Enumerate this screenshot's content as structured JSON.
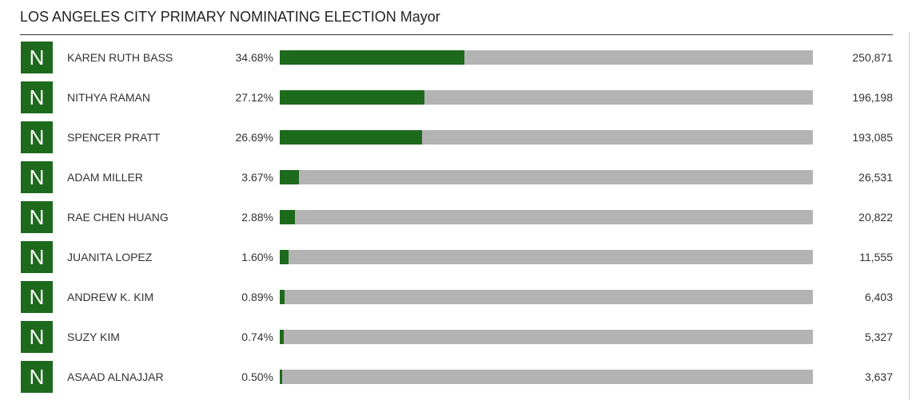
{
  "header": {
    "title": "LOS ANGELES CITY PRIMARY NOMINATING ELECTION Mayor"
  },
  "candidates": [
    {
      "badge": "N",
      "name": "KAREN RUTH BASS",
      "percent": {
        "value": 34.68,
        "label": "34.68%"
      },
      "votes": "250,871"
    },
    {
      "badge": "N",
      "name": "NITHYA RAMAN",
      "percent": {
        "value": 27.12,
        "label": "27.12%"
      },
      "votes": "196,198"
    },
    {
      "badge": "N",
      "name": "SPENCER PRATT",
      "percent": {
        "value": 26.69,
        "label": "26.69%"
      },
      "votes": "193,085"
    },
    {
      "badge": "N",
      "name": "ADAM MILLER",
      "percent": {
        "value": 3.67,
        "label": "3.67%"
      },
      "votes": "26,531"
    },
    {
      "badge": "N",
      "name": "RAE CHEN HUANG",
      "percent": {
        "value": 2.88,
        "label": "2.88%"
      },
      "votes": "20,822"
    },
    {
      "badge": "N",
      "name": "JUANITA LOPEZ",
      "percent": {
        "value": 1.6,
        "label": "1.60%"
      },
      "votes": "11,555"
    },
    {
      "badge": "N",
      "name": "ANDREW K. KIM",
      "percent": {
        "value": 0.89,
        "label": "0.89%"
      },
      "votes": "6,403"
    },
    {
      "badge": "N",
      "name": "SUZY KIM",
      "percent": {
        "value": 0.74,
        "label": "0.74%"
      },
      "votes": "5,327"
    },
    {
      "badge": "N",
      "name": "ASAAD ALNAJJAR",
      "percent": {
        "value": 0.5,
        "label": "0.50%"
      },
      "votes": "3,637"
    }
  ]
}
